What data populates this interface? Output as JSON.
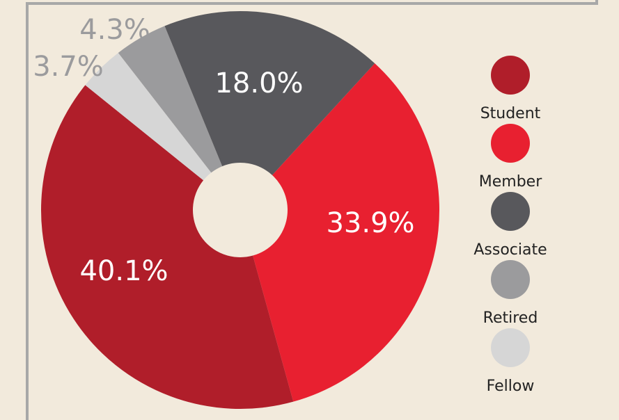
{
  "chart_data": {
    "type": "donut",
    "categories": [
      "Student",
      "Member",
      "Associate",
      "Retired",
      "Fellow"
    ],
    "values": [
      40.1,
      33.9,
      18.0,
      4.3,
      3.7
    ],
    "value_labels": [
      "40.1%",
      "33.9%",
      "18.0%",
      "4.3%",
      "3.7%"
    ],
    "colors": [
      "#b01e2a",
      "#e82030",
      "#58585c",
      "#9b9b9d",
      "#d6d6d6"
    ],
    "legend": "right"
  }
}
